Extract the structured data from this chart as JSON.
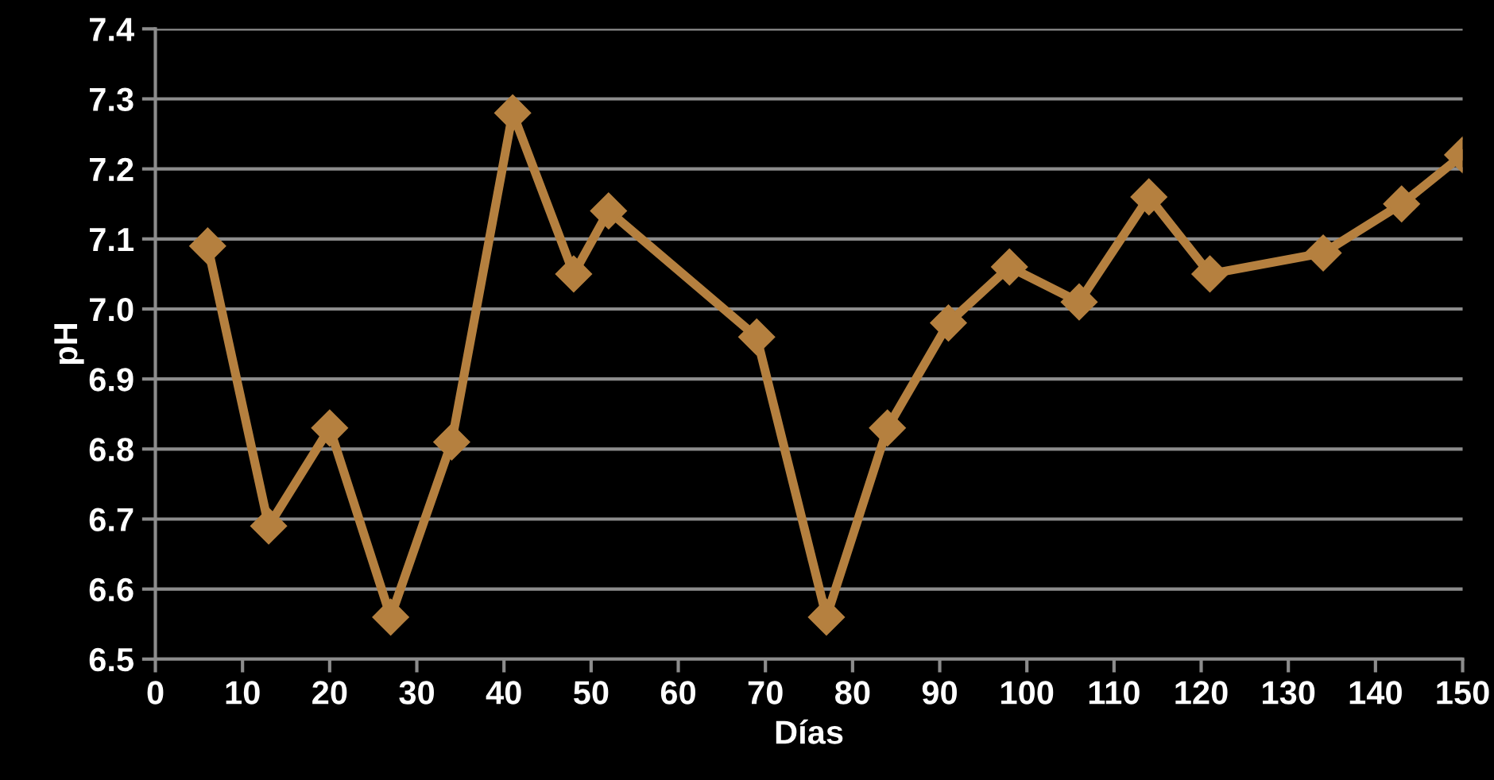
{
  "chart_data": {
    "type": "line",
    "xlabel": "Días",
    "ylabel": "pH",
    "x": [
      6,
      13,
      20,
      27,
      34,
      41,
      48,
      52,
      69,
      77,
      84,
      91,
      98,
      106,
      114,
      121,
      134,
      143,
      150
    ],
    "series": [
      {
        "color": "#b5803f",
        "values": [
          7.09,
          6.69,
          6.83,
          6.56,
          6.81,
          7.28,
          7.05,
          7.14,
          6.96,
          6.56,
          6.83,
          6.98,
          7.06,
          7.01,
          7.16,
          7.05,
          7.08,
          7.15,
          7.22
        ]
      }
    ],
    "xlim": [
      0,
      150
    ],
    "xticks": [
      0,
      10,
      20,
      30,
      40,
      50,
      60,
      70,
      80,
      90,
      100,
      110,
      120,
      130,
      140,
      150
    ],
    "ylim": [
      6.5,
      7.4
    ],
    "yticks": [
      {
        "value": 6.5,
        "label": "6.5"
      },
      {
        "value": 6.6,
        "label": "6.6"
      },
      {
        "value": 6.7,
        "label": "6.7"
      },
      {
        "value": 6.8,
        "label": "6.8"
      },
      {
        "value": 6.9,
        "label": "6.9"
      },
      {
        "value": 7.0,
        "label": "7.0"
      },
      {
        "value": 7.1,
        "label": "7.1"
      },
      {
        "value": 7.2,
        "label": "7.2"
      },
      {
        "value": 7.3,
        "label": "7.3"
      },
      {
        "value": 7.4,
        "label": "7.4"
      }
    ],
    "grid": "y",
    "marker": "diamond",
    "line_style": "solid"
  }
}
